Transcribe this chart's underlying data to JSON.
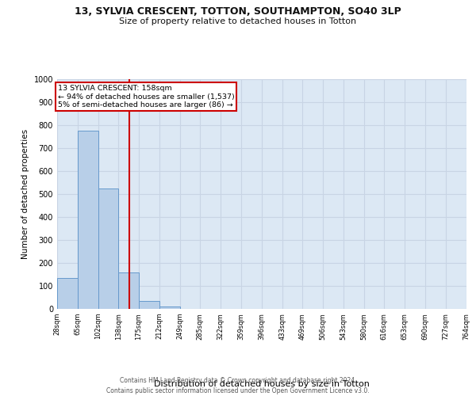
{
  "title": "13, SYLVIA CRESCENT, TOTTON, SOUTHAMPTON, SO40 3LP",
  "subtitle": "Size of property relative to detached houses in Totton",
  "xlabel": "Distribution of detached houses by size in Totton",
  "ylabel": "Number of detached properties",
  "bar_edges": [
    28,
    65,
    102,
    138,
    175,
    212,
    249,
    285,
    322,
    359,
    396,
    433,
    469,
    506,
    543,
    580,
    616,
    653,
    690,
    727,
    764
  ],
  "bar_heights": [
    133,
    775,
    524,
    160,
    35,
    12,
    0,
    0,
    0,
    0,
    0,
    0,
    0,
    0,
    0,
    0,
    0,
    0,
    0,
    0
  ],
  "bar_color": "#b8cfe8",
  "bar_edge_color": "#6699cc",
  "vline_x": 158,
  "vline_color": "#cc0000",
  "annotation_line1": "13 SYLVIA CRESCENT: 158sqm",
  "annotation_line2": "← 94% of detached houses are smaller (1,537)",
  "annotation_line3": "5% of semi-detached houses are larger (86) →",
  "annotation_box_color": "#cc0000",
  "annotation_bg": "#ffffff",
  "ylim": [
    0,
    1000
  ],
  "yticks": [
    0,
    100,
    200,
    300,
    400,
    500,
    600,
    700,
    800,
    900,
    1000
  ],
  "grid_color": "#c8d4e4",
  "bg_color": "#dce8f4",
  "footer_line1": "Contains HM Land Registry data © Crown copyright and database right 2024.",
  "footer_line2": "Contains public sector information licensed under the Open Government Licence v3.0.",
  "tick_labels": [
    "28sqm",
    "65sqm",
    "102sqm",
    "138sqm",
    "175sqm",
    "212sqm",
    "249sqm",
    "285sqm",
    "322sqm",
    "359sqm",
    "396sqm",
    "433sqm",
    "469sqm",
    "506sqm",
    "543sqm",
    "580sqm",
    "616sqm",
    "653sqm",
    "690sqm",
    "727sqm",
    "764sqm"
  ]
}
